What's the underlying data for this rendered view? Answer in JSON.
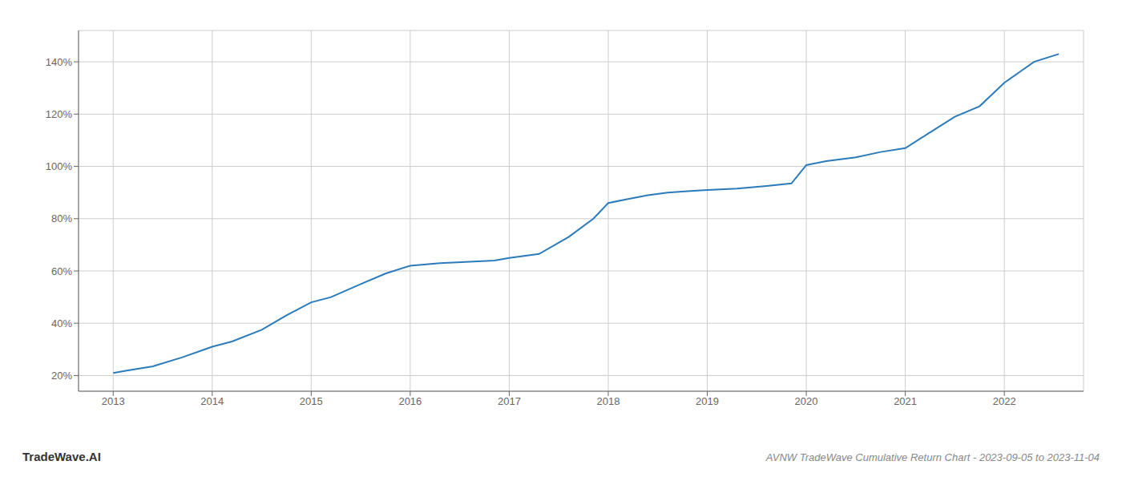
{
  "chart_data": {
    "type": "line",
    "title": "AVNW TradeWave Cumulative Return Chart - 2023-09-05 to 2023-11-04",
    "annotations": [
      "TradeWave.AI"
    ],
    "x": [
      2013.0,
      2013.15,
      2013.4,
      2013.7,
      2014.0,
      2014.2,
      2014.5,
      2014.75,
      2015.0,
      2015.2,
      2015.5,
      2015.75,
      2016.0,
      2016.3,
      2016.6,
      2016.85,
      2017.0,
      2017.3,
      2017.6,
      2017.85,
      2018.0,
      2018.2,
      2018.4,
      2018.6,
      2018.8,
      2019.0,
      2019.3,
      2019.6,
      2019.85,
      2020.0,
      2020.2,
      2020.5,
      2020.75,
      2021.0,
      2021.25,
      2021.5,
      2021.75,
      2022.0,
      2022.3,
      2022.55
    ],
    "values": [
      21.0,
      22.0,
      23.5,
      27.0,
      31.0,
      33.0,
      37.5,
      43.0,
      48.0,
      50.0,
      55.0,
      59.0,
      62.0,
      63.0,
      63.5,
      64.0,
      65.0,
      66.5,
      73.0,
      80.0,
      86.0,
      87.5,
      89.0,
      90.0,
      90.5,
      91.0,
      91.5,
      92.5,
      93.5,
      100.5,
      102.0,
      103.5,
      105.5,
      107.0,
      113.0,
      119.0,
      123.0,
      132.0,
      140.0,
      143.0
    ],
    "color": "#2b7bba",
    "xlim": [
      2012.65,
      2022.8
    ],
    "ylim": [
      14,
      152
    ],
    "xticks": [
      2013,
      2014,
      2015,
      2016,
      2017,
      2018,
      2019,
      2020,
      2021,
      2022
    ],
    "yticks": [
      {
        "value": 20,
        "label": "20%"
      },
      {
        "value": 40,
        "label": "40%"
      },
      {
        "value": 60,
        "label": "60%"
      },
      {
        "value": 80,
        "label": "80%"
      },
      {
        "value": 100,
        "label": "100%"
      },
      {
        "value": 120,
        "label": "120%"
      },
      {
        "value": 140,
        "label": "140%"
      }
    ],
    "grid": true
  }
}
